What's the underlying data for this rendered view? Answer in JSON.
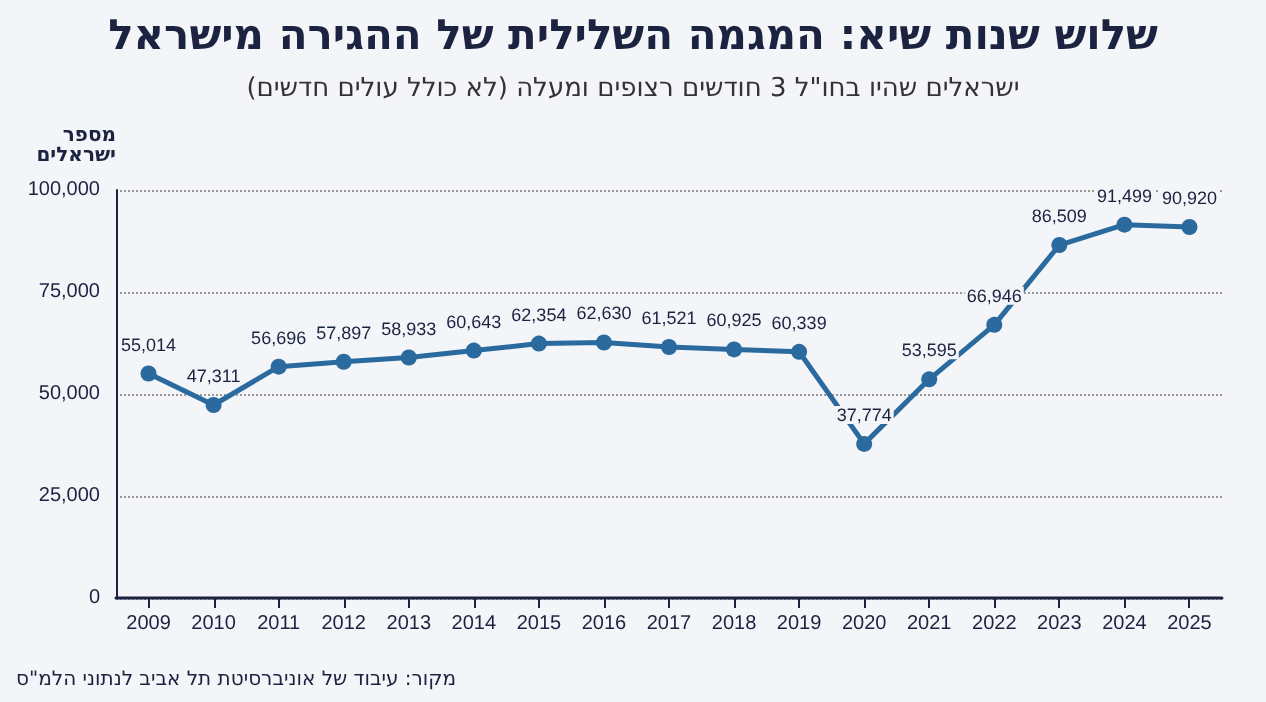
{
  "chart_data": {
    "type": "line",
    "title": "שלוש שנות שיא: המגמה השלילית של ההגירה מישראל",
    "subtitle": "ישראלים שהיו בחו\"ל 3 חודשים רצופים ומעלה (לא כולל עולים חדשים)",
    "ylabel": "מספר\nישראלים",
    "annotations": [
      "מקור: עיבוד של אוניברסיטת תל אביב לנתוני הלמ\"ס"
    ],
    "categories": [
      "2009",
      "2010",
      "2011",
      "2012",
      "2013",
      "2014",
      "2015",
      "2016",
      "2017",
      "2018",
      "2019",
      "2020",
      "2021",
      "2022",
      "2023",
      "2024",
      "2025"
    ],
    "series": [
      {
        "color": "#2a6a9e",
        "values": [
          55014,
          47311,
          56696,
          57897,
          58933,
          60643,
          62354,
          62630,
          61521,
          60925,
          60339,
          37774,
          53595,
          66946,
          86509,
          91499,
          90920
        ],
        "value_labels": [
          "55,014",
          "47,311",
          "56,696",
          "57,897",
          "58,933",
          "60,643",
          "62,354",
          "62,630",
          "61,521",
          "60,925",
          "60,339",
          "37,774",
          "53,595",
          "66,946",
          "86,509",
          "91,499",
          "90,920"
        ]
      }
    ],
    "ylim": [
      0,
      100000
    ],
    "yticks": [
      0,
      {
        "value": 25000,
        "label": "25,000"
      },
      {
        "value": 50000,
        "label": "50,000"
      },
      {
        "value": 75000,
        "label": "75,000"
      },
      {
        "value": 100000,
        "label": "100,000"
      }
    ],
    "grid": "y",
    "marker": "circle",
    "line_style": "solid"
  }
}
